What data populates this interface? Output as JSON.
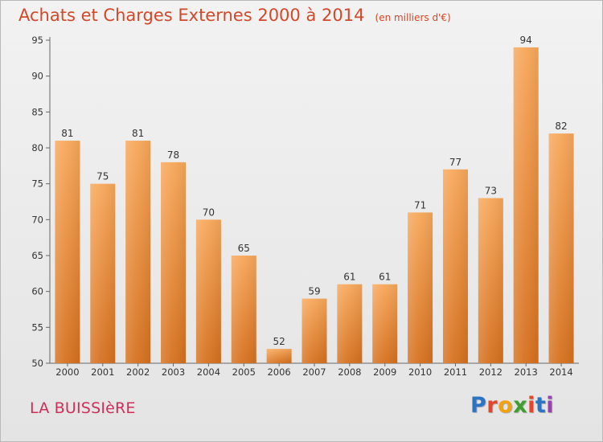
{
  "header": {
    "title": "Achats et Charges Externes 2000 à 2014",
    "subtitle": "(en milliers d'€)"
  },
  "footer": {
    "commune": "LA BUISSIèRE",
    "logo_text": "Proxiti"
  },
  "colors": {
    "bar_top": "#f7a75a",
    "bar_bottom": "#d5701e",
    "title": "#d2492a",
    "commune": "#cc2f5a"
  },
  "chart_data": {
    "type": "bar",
    "title": "Achats et Charges Externes 2000 à 2014",
    "subtitle": "(en milliers d'€)",
    "categories": [
      "2000",
      "2001",
      "2002",
      "2003",
      "2004",
      "2005",
      "2006",
      "2007",
      "2008",
      "2009",
      "2010",
      "2011",
      "2012",
      "2013",
      "2014"
    ],
    "values": [
      81,
      75,
      81,
      78,
      70,
      65,
      52,
      59,
      61,
      61,
      71,
      77,
      73,
      94,
      82
    ],
    "ylim": [
      50,
      95
    ],
    "yticks": [
      50,
      55,
      60,
      65,
      70,
      75,
      80,
      85,
      90,
      95
    ],
    "xlabel": "",
    "ylabel": "",
    "grid": false,
    "data_labels": true
  }
}
